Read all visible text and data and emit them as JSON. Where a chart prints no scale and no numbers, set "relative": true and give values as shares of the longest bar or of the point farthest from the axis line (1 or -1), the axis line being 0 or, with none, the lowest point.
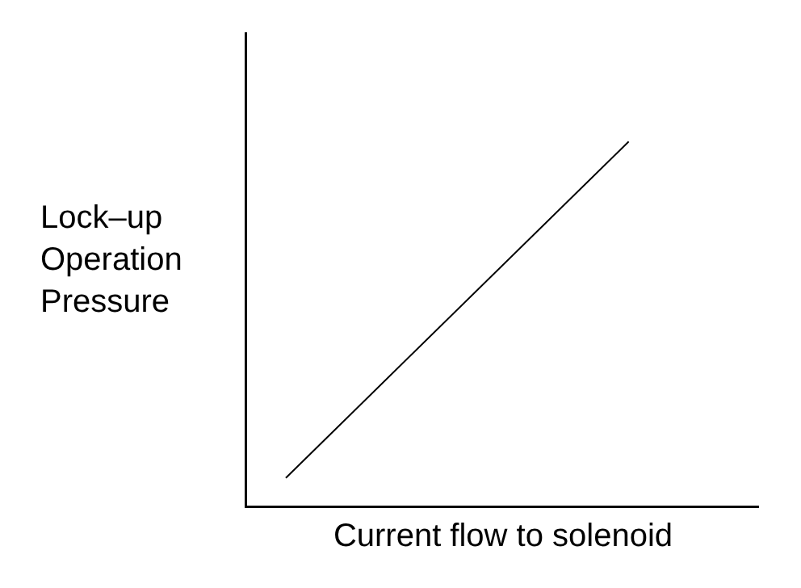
{
  "chart_data": {
    "type": "line",
    "relative": true,
    "xlabel": "Current flow to solenoid",
    "ylabel": "Lock–up Operation Pressure",
    "categories": [
      null,
      null
    ],
    "series": [
      {
        "color": "#000000",
        "values": [
          0.076,
          1
        ]
      }
    ],
    "marker": "none",
    "line_style": "solid"
  }
}
